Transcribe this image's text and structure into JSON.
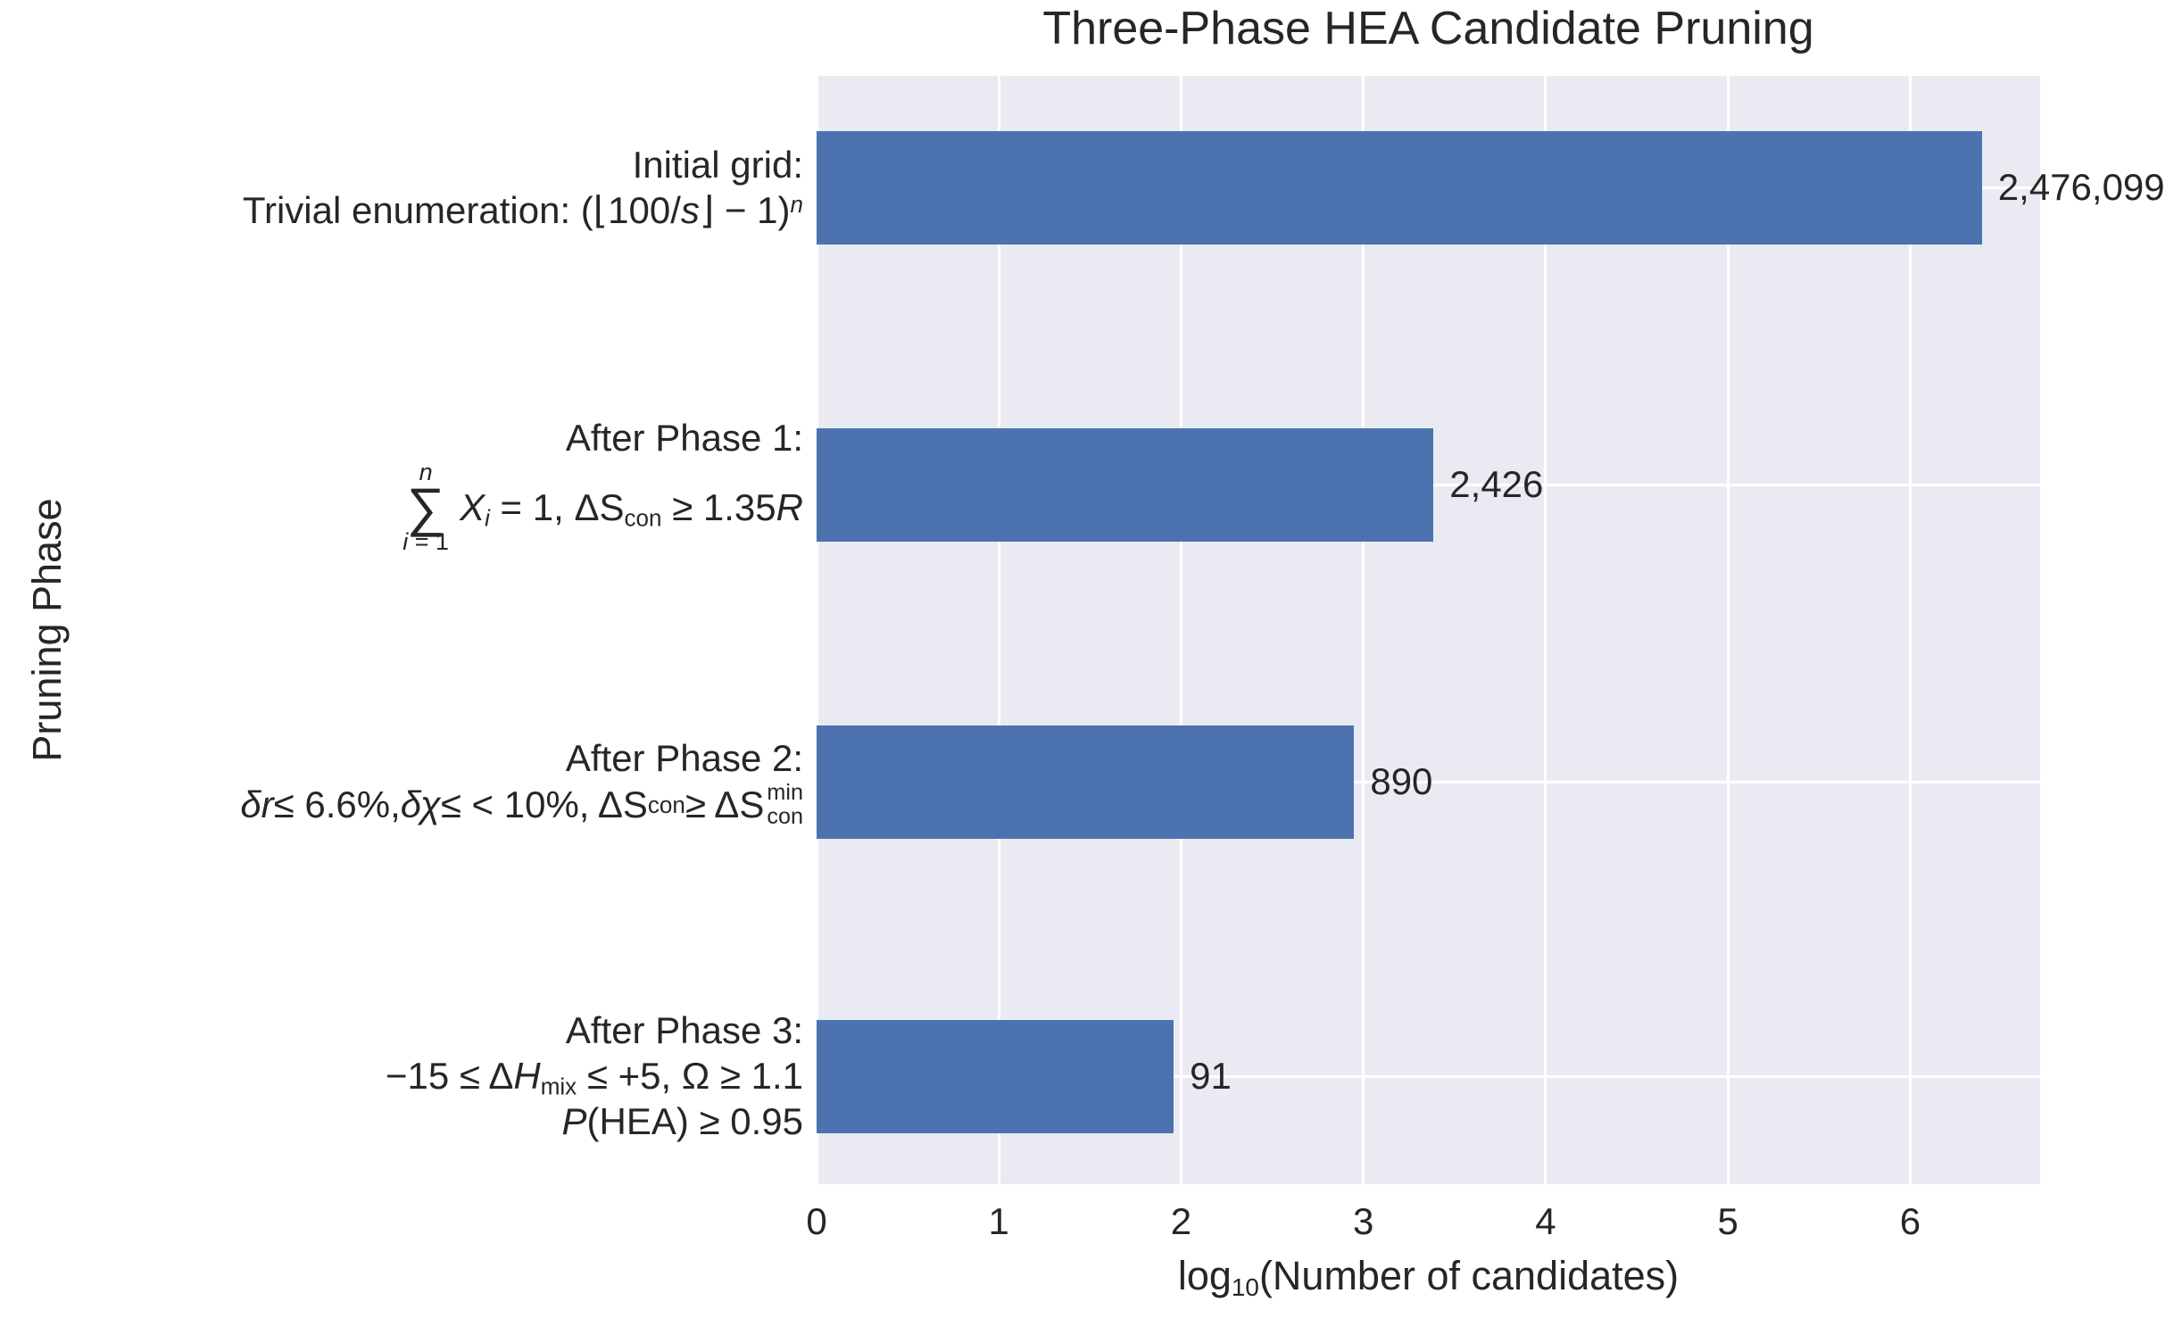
{
  "chart_data": {
    "type": "bar",
    "orientation": "horizontal",
    "title": "Three-Phase HEA Candidate Pruning",
    "xlabel": "log10(Number of candidates)",
    "ylabel": "Pruning Phase",
    "categories": [
      "Initial grid: Trivial enumeration: (⌊100/s⌋ − 1)^n",
      "After Phase 1: ∑_{i=1}^{n} X_i = 1, ΔS_con ≥ 1.35R",
      "After Phase 2: δr ≤ 6.6%, δχ ≤ < 10%, ΔS_con ≥ ΔS_con^min",
      "After Phase 3: −15 ≤ ΔH_mix ≤ +5, Ω ≥ 1.1, P(HEA) ≥ 0.95"
    ],
    "values": [
      2476099,
      2426,
      890,
      91
    ],
    "log10_values": [
      6.394,
      3.385,
      2.949,
      1.959
    ],
    "value_labels": [
      "2,476,099",
      "2,426",
      "890",
      "91"
    ],
    "xticks": [
      "0",
      "1",
      "2",
      "3",
      "4",
      "5",
      "6"
    ],
    "xlim": [
      0,
      6.713
    ],
    "grid": true,
    "legend": false,
    "colors": {
      "bar": "#4C72B0",
      "plot_background": "#EAEAF2",
      "grid": "#FFFFFF",
      "text": "#262626",
      "figure_background": "#FFFFFF"
    }
  },
  "x_axis": {
    "label_rich": [
      {
        "t": "log"
      },
      {
        "t": "10",
        "s": "sub"
      },
      {
        "t": "(Number of candidates)"
      }
    ]
  },
  "row_labels": [
    {
      "line1": [
        {
          "t": "Initial grid:"
        }
      ],
      "line2": [
        {
          "t": "Trivial enumeration: (⌊100/"
        },
        {
          "t": "s",
          "s": "i"
        },
        {
          "t": "⌋ − 1)"
        },
        {
          "t": "n",
          "s": "isup"
        }
      ]
    },
    {
      "line1": [
        {
          "t": "After Phase 1:"
        }
      ],
      "sum": {
        "top": [
          {
            "t": "n",
            "s": "i"
          }
        ],
        "symbol": "∑",
        "bottom": [
          {
            "t": "i",
            "s": "i"
          },
          {
            "t": " = 1"
          }
        ]
      },
      "line2": [
        {
          "t": "X",
          "s": "i"
        },
        {
          "t": "i",
          "s": "isub"
        },
        {
          "t": " = 1, ΔS"
        },
        {
          "t": "con",
          "s": "sub"
        },
        {
          "t": " ≥ 1.35"
        },
        {
          "t": "R",
          "s": "i"
        }
      ]
    },
    {
      "line1": [
        {
          "t": "After Phase 2:"
        }
      ],
      "line2": [
        {
          "t": "δr",
          "s": "i"
        },
        {
          "t": " ≤ 6.6%, "
        },
        {
          "t": "δχ",
          "s": "i"
        },
        {
          "t": " ≤ < 10%, ΔS"
        },
        {
          "t": "con",
          "s": "sub"
        },
        {
          "t": " ≥ ΔS"
        },
        {
          "s": "stack",
          "top": "min",
          "bottom": "con"
        }
      ]
    },
    {
      "line1": [
        {
          "t": "After Phase 3:"
        }
      ],
      "line2": [
        {
          "t": "−15 ≤ Δ"
        },
        {
          "t": "H",
          "s": "i"
        },
        {
          "t": "mix",
          "s": "sub"
        },
        {
          "t": " ≤ +5, Ω ≥ 1.1"
        }
      ],
      "line3": [
        {
          "t": "P",
          "s": "i"
        },
        {
          "t": "(HEA) ≥ 0.95"
        }
      ]
    }
  ]
}
